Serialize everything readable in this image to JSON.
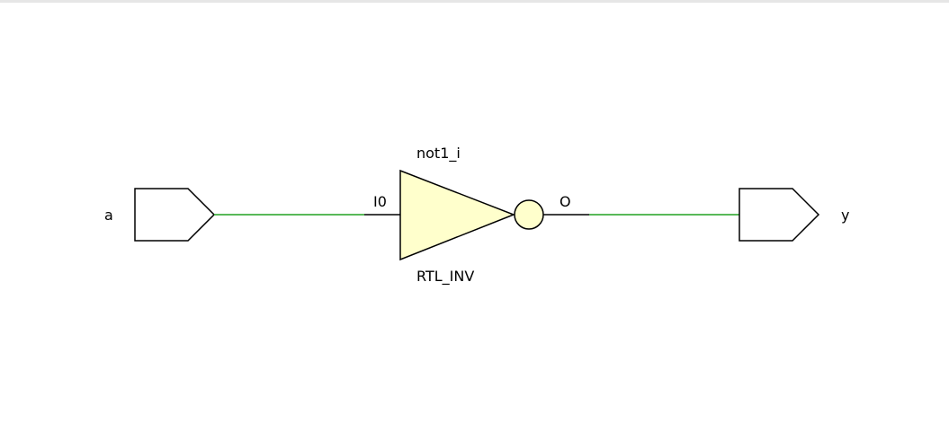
{
  "schematic": {
    "input_port": {
      "label": "a"
    },
    "output_port": {
      "label": "y"
    },
    "cell": {
      "instance_name": "not1_i",
      "type_name": "RTL_INV",
      "input_pin": "I0",
      "output_pin": "O"
    },
    "colors": {
      "net": "#22a222",
      "gate_fill": "#ffffcc",
      "outline": "#000000",
      "frame": "#e6e6e6"
    }
  }
}
